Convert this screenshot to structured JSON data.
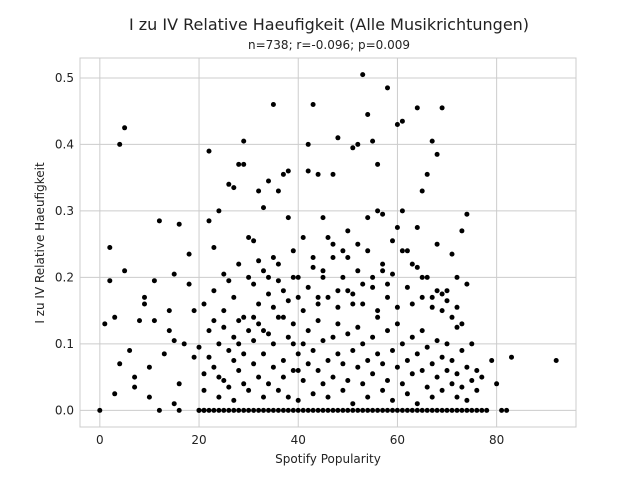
{
  "chart_data": {
    "type": "scatter",
    "title": "I zu IV Relative Haeufigkeit (Alle Musikrichtungen)",
    "subtitle": "n=738; r=-0.096; p=0.009",
    "xlabel": "Spotify Popularity",
    "ylabel": "I zu IV Relative Haeufigkeit",
    "xlim": [
      -4,
      96
    ],
    "ylim": [
      -0.025,
      0.53
    ],
    "x_ticks": [
      0,
      20,
      40,
      60,
      80
    ],
    "y_ticks": [
      0.0,
      0.1,
      0.2,
      0.3,
      0.4,
      0.5
    ],
    "grid": true,
    "marker_color": "#000000",
    "points": [
      [
        0,
        0.0
      ],
      [
        1,
        0.13
      ],
      [
        2,
        0.245
      ],
      [
        2,
        0.195
      ],
      [
        3,
        0.14
      ],
      [
        3,
        0.025
      ],
      [
        4,
        0.4
      ],
      [
        4,
        0.07
      ],
      [
        5,
        0.425
      ],
      [
        5,
        0.21
      ],
      [
        6,
        0.09
      ],
      [
        7,
        0.05
      ],
      [
        7,
        0.035
      ],
      [
        8,
        0.135
      ],
      [
        9,
        0.17
      ],
      [
        9,
        0.16
      ],
      [
        10,
        0.065
      ],
      [
        10,
        0.02
      ],
      [
        11,
        0.195
      ],
      [
        11,
        0.135
      ],
      [
        12,
        0.285
      ],
      [
        12,
        0.0
      ],
      [
        13,
        0.085
      ],
      [
        14,
        0.15
      ],
      [
        14,
        0.12
      ],
      [
        15,
        0.205
      ],
      [
        15,
        0.105
      ],
      [
        15,
        0.01
      ],
      [
        16,
        0.28
      ],
      [
        16,
        0.04
      ],
      [
        16,
        0.0
      ],
      [
        17,
        0.1
      ],
      [
        18,
        0.235
      ],
      [
        18,
        0.19
      ],
      [
        19,
        0.15
      ],
      [
        19,
        0.08
      ],
      [
        20,
        0.0
      ],
      [
        21,
        0.055
      ],
      [
        21,
        0.0
      ],
      [
        22,
        0.39
      ],
      [
        22,
        0.285
      ],
      [
        22,
        0.0
      ],
      [
        23,
        0.245
      ],
      [
        23,
        0.135
      ],
      [
        24,
        0.3
      ],
      [
        24,
        0.05
      ],
      [
        25,
        0.205
      ],
      [
        25,
        0.125
      ],
      [
        26,
        0.34
      ],
      [
        26,
        0.195
      ],
      [
        26,
        0.0
      ],
      [
        27,
        0.335
      ],
      [
        27,
        0.11
      ],
      [
        28,
        0.37
      ],
      [
        28,
        0.135
      ],
      [
        29,
        0.405
      ],
      [
        29,
        0.37
      ],
      [
        29,
        0.0
      ],
      [
        30,
        0.26
      ],
      [
        30,
        0.2
      ],
      [
        31,
        0.255
      ],
      [
        31,
        0.14
      ],
      [
        32,
        0.33
      ],
      [
        32,
        0.225
      ],
      [
        32,
        0.0
      ],
      [
        33,
        0.305
      ],
      [
        33,
        0.12
      ],
      [
        34,
        0.345
      ],
      [
        34,
        0.2
      ],
      [
        35,
        0.46
      ],
      [
        35,
        0.23
      ],
      [
        35,
        0.0
      ],
      [
        36,
        0.33
      ],
      [
        36,
        0.195
      ],
      [
        37,
        0.355
      ],
      [
        37,
        0.14
      ],
      [
        38,
        0.36
      ],
      [
        38,
        0.29
      ],
      [
        38,
        0.0
      ],
      [
        39,
        0.2
      ],
      [
        39,
        0.1
      ],
      [
        40,
        0.17
      ],
      [
        40,
        0.06
      ],
      [
        41,
        0.26
      ],
      [
        41,
        0.0
      ],
      [
        42,
        0.4
      ],
      [
        42,
        0.36
      ],
      [
        43,
        0.46
      ],
      [
        43,
        0.215
      ],
      [
        43,
        0.0
      ],
      [
        44,
        0.355
      ],
      [
        44,
        0.17
      ],
      [
        45,
        0.29
      ],
      [
        45,
        0.2
      ],
      [
        46,
        0.26
      ],
      [
        46,
        0.0
      ],
      [
        47,
        0.355
      ],
      [
        47,
        0.23
      ],
      [
        48,
        0.41
      ],
      [
        48,
        0.18
      ],
      [
        49,
        0.24
      ],
      [
        49,
        0.0
      ],
      [
        50,
        0.27
      ],
      [
        50,
        0.18
      ],
      [
        51,
        0.395
      ],
      [
        51,
        0.16
      ],
      [
        52,
        0.4
      ],
      [
        52,
        0.25
      ],
      [
        53,
        0.505
      ],
      [
        53,
        0.19
      ],
      [
        53,
        0.0
      ],
      [
        54,
        0.445
      ],
      [
        54,
        0.29
      ],
      [
        55,
        0.405
      ],
      [
        55,
        0.2
      ],
      [
        56,
        0.37
      ],
      [
        56,
        0.3
      ],
      [
        56,
        0.0
      ],
      [
        57,
        0.295
      ],
      [
        57,
        0.21
      ],
      [
        58,
        0.485
      ],
      [
        58,
        0.19
      ],
      [
        59,
        0.255
      ],
      [
        59,
        0.0
      ],
      [
        60,
        0.43
      ],
      [
        60,
        0.275
      ],
      [
        61,
        0.435
      ],
      [
        61,
        0.3
      ],
      [
        62,
        0.24
      ],
      [
        62,
        0.0
      ],
      [
        63,
        0.22
      ],
      [
        64,
        0.455
      ],
      [
        64,
        0.275
      ],
      [
        65,
        0.33
      ],
      [
        65,
        0.2
      ],
      [
        66,
        0.355
      ],
      [
        66,
        0.0
      ],
      [
        67,
        0.405
      ],
      [
        67,
        0.17
      ],
      [
        68,
        0.385
      ],
      [
        68,
        0.25
      ],
      [
        69,
        0.455
      ],
      [
        69,
        0.175
      ],
      [
        70,
        0.18
      ],
      [
        70,
        0.0
      ],
      [
        71,
        0.235
      ],
      [
        72,
        0.2
      ],
      [
        72,
        0.125
      ],
      [
        73,
        0.27
      ],
      [
        73,
        0.0
      ],
      [
        74,
        0.295
      ],
      [
        74,
        0.19
      ],
      [
        75,
        0.1
      ],
      [
        76,
        0.06
      ],
      [
        76,
        0.0
      ],
      [
        77,
        0.05
      ],
      [
        78,
        0.0
      ],
      [
        79,
        0.075
      ],
      [
        80,
        0.04
      ],
      [
        81,
        0.0
      ],
      [
        82,
        0.0
      ],
      [
        83,
        0.08
      ],
      [
        92,
        0.075
      ],
      [
        20,
        0.0
      ],
      [
        21,
        0.0
      ],
      [
        23,
        0.0
      ],
      [
        24,
        0.0
      ],
      [
        25,
        0.0
      ],
      [
        27,
        0.0
      ],
      [
        28,
        0.0
      ],
      [
        30,
        0.0
      ],
      [
        31,
        0.0
      ],
      [
        33,
        0.0
      ],
      [
        34,
        0.0
      ],
      [
        36,
        0.0
      ],
      [
        37,
        0.0
      ],
      [
        39,
        0.0
      ],
      [
        40,
        0.0
      ],
      [
        42,
        0.0
      ],
      [
        44,
        0.0
      ],
      [
        45,
        0.0
      ],
      [
        47,
        0.0
      ],
      [
        48,
        0.0
      ],
      [
        50,
        0.0
      ],
      [
        51,
        0.0
      ],
      [
        52,
        0.0
      ],
      [
        54,
        0.0
      ],
      [
        55,
        0.0
      ],
      [
        57,
        0.0
      ],
      [
        58,
        0.0
      ],
      [
        60,
        0.0
      ],
      [
        61,
        0.0
      ],
      [
        63,
        0.0
      ],
      [
        64,
        0.0
      ],
      [
        65,
        0.0
      ],
      [
        67,
        0.0
      ],
      [
        68,
        0.0
      ],
      [
        69,
        0.0
      ],
      [
        71,
        0.0
      ],
      [
        72,
        0.0
      ],
      [
        74,
        0.0
      ],
      [
        75,
        0.0
      ],
      [
        77,
        0.0
      ],
      [
        20,
        0.095
      ],
      [
        21,
        0.03
      ],
      [
        22,
        0.08
      ],
      [
        23,
        0.065
      ],
      [
        24,
        0.1
      ],
      [
        24,
        0.02
      ],
      [
        25,
        0.045
      ],
      [
        26,
        0.09
      ],
      [
        26,
        0.035
      ],
      [
        27,
        0.075
      ],
      [
        27,
        0.015
      ],
      [
        28,
        0.06
      ],
      [
        28,
        0.1
      ],
      [
        29,
        0.04
      ],
      [
        29,
        0.085
      ],
      [
        30,
        0.12
      ],
      [
        30,
        0.03
      ],
      [
        31,
        0.07
      ],
      [
        31,
        0.105
      ],
      [
        32,
        0.05
      ],
      [
        32,
        0.13
      ],
      [
        33,
        0.02
      ],
      [
        33,
        0.085
      ],
      [
        34,
        0.04
      ],
      [
        34,
        0.115
      ],
      [
        35,
        0.065
      ],
      [
        35,
        0.1
      ],
      [
        36,
        0.03
      ],
      [
        36,
        0.14
      ],
      [
        37,
        0.075
      ],
      [
        37,
        0.05
      ],
      [
        38,
        0.11
      ],
      [
        38,
        0.02
      ],
      [
        39,
        0.06
      ],
      [
        39,
        0.13
      ],
      [
        40,
        0.085
      ],
      [
        40,
        0.015
      ],
      [
        41,
        0.1
      ],
      [
        41,
        0.045
      ],
      [
        42,
        0.12
      ],
      [
        42,
        0.07
      ],
      [
        43,
        0.025
      ],
      [
        43,
        0.09
      ],
      [
        44,
        0.06
      ],
      [
        44,
        0.135
      ],
      [
        45,
        0.04
      ],
      [
        45,
        0.105
      ],
      [
        46,
        0.075
      ],
      [
        46,
        0.02
      ],
      [
        47,
        0.11
      ],
      [
        47,
        0.05
      ],
      [
        48,
        0.085
      ],
      [
        48,
        0.13
      ],
      [
        49,
        0.03
      ],
      [
        49,
        0.07
      ],
      [
        50,
        0.115
      ],
      [
        50,
        0.045
      ],
      [
        51,
        0.09
      ],
      [
        51,
        0.01
      ],
      [
        52,
        0.065
      ],
      [
        52,
        0.125
      ],
      [
        53,
        0.04
      ],
      [
        53,
        0.1
      ],
      [
        54,
        0.075
      ],
      [
        54,
        0.02
      ],
      [
        55,
        0.11
      ],
      [
        55,
        0.055
      ],
      [
        56,
        0.085
      ],
      [
        56,
        0.14
      ],
      [
        57,
        0.03
      ],
      [
        57,
        0.07
      ],
      [
        58,
        0.12
      ],
      [
        58,
        0.045
      ],
      [
        59,
        0.09
      ],
      [
        59,
        0.015
      ],
      [
        60,
        0.065
      ],
      [
        60,
        0.13
      ],
      [
        61,
        0.04
      ],
      [
        61,
        0.1
      ],
      [
        62,
        0.075
      ],
      [
        62,
        0.025
      ],
      [
        63,
        0.11
      ],
      [
        63,
        0.055
      ],
      [
        64,
        0.085
      ],
      [
        64,
        0.01
      ],
      [
        65,
        0.06
      ],
      [
        65,
        0.12
      ],
      [
        66,
        0.035
      ],
      [
        66,
        0.095
      ],
      [
        67,
        0.07
      ],
      [
        67,
        0.02
      ],
      [
        68,
        0.105
      ],
      [
        68,
        0.05
      ],
      [
        69,
        0.08
      ],
      [
        69,
        0.03
      ],
      [
        70,
        0.06
      ],
      [
        70,
        0.1
      ],
      [
        71,
        0.04
      ],
      [
        71,
        0.075
      ],
      [
        72,
        0.02
      ],
      [
        72,
        0.055
      ],
      [
        73,
        0.09
      ],
      [
        73,
        0.035
      ],
      [
        74,
        0.065
      ],
      [
        74,
        0.015
      ],
      [
        75,
        0.045
      ],
      [
        76,
        0.03
      ],
      [
        21,
        0.16
      ],
      [
        22,
        0.12
      ],
      [
        23,
        0.18
      ],
      [
        25,
        0.15
      ],
      [
        27,
        0.17
      ],
      [
        28,
        0.22
      ],
      [
        29,
        0.14
      ],
      [
        31,
        0.19
      ],
      [
        32,
        0.16
      ],
      [
        33,
        0.21
      ],
      [
        34,
        0.175
      ],
      [
        35,
        0.155
      ],
      [
        36,
        0.22
      ],
      [
        37,
        0.18
      ],
      [
        38,
        0.165
      ],
      [
        39,
        0.24
      ],
      [
        40,
        0.2
      ],
      [
        41,
        0.15
      ],
      [
        42,
        0.185
      ],
      [
        43,
        0.23
      ],
      [
        44,
        0.16
      ],
      [
        45,
        0.21
      ],
      [
        46,
        0.17
      ],
      [
        47,
        0.25
      ],
      [
        48,
        0.155
      ],
      [
        49,
        0.2
      ],
      [
        50,
        0.23
      ],
      [
        51,
        0.175
      ],
      [
        52,
        0.21
      ],
      [
        53,
        0.16
      ],
      [
        54,
        0.24
      ],
      [
        55,
        0.185
      ],
      [
        56,
        0.15
      ],
      [
        57,
        0.22
      ],
      [
        58,
        0.17
      ],
      [
        59,
        0.205
      ],
      [
        60,
        0.155
      ],
      [
        61,
        0.24
      ],
      [
        62,
        0.185
      ],
      [
        63,
        0.16
      ],
      [
        64,
        0.215
      ],
      [
        65,
        0.17
      ],
      [
        66,
        0.2
      ],
      [
        67,
        0.155
      ],
      [
        68,
        0.18
      ],
      [
        69,
        0.15
      ],
      [
        70,
        0.165
      ],
      [
        71,
        0.14
      ],
      [
        72,
        0.155
      ],
      [
        73,
        0.13
      ]
    ]
  }
}
